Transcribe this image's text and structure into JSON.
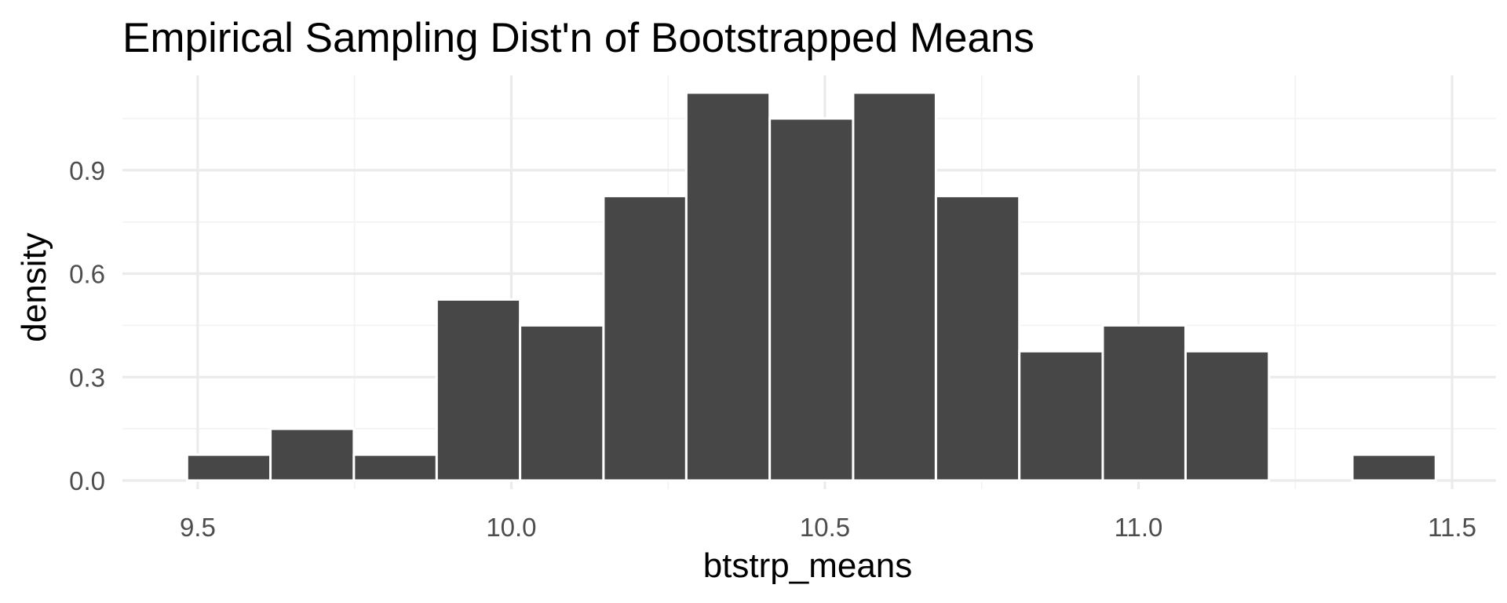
{
  "chart_data": {
    "type": "bar",
    "title": "Empirical Sampling Dist'n of Bootstrapped Means",
    "xlabel": "btstrp_means",
    "ylabel": "density",
    "xlim": [
      9.38,
      11.57
    ],
    "ylim": [
      -0.025,
      1.175
    ],
    "x_ticks": [
      9.5,
      10.0,
      10.5,
      11.0,
      11.5
    ],
    "x_tick_labels": [
      "9.5",
      "10.0",
      "10.5",
      "11.0",
      "11.5"
    ],
    "y_ticks": [
      0.0,
      0.3,
      0.6,
      0.9
    ],
    "y_tick_labels": [
      "0.0",
      "0.3",
      "0.6",
      "0.9"
    ],
    "bin_width": 0.1327,
    "bins": [
      {
        "start": 9.483,
        "end": 9.616,
        "density": 0.075
      },
      {
        "start": 9.616,
        "end": 9.749,
        "density": 0.15
      },
      {
        "start": 9.749,
        "end": 9.881,
        "density": 0.075
      },
      {
        "start": 9.881,
        "end": 10.014,
        "density": 0.525
      },
      {
        "start": 10.014,
        "end": 10.147,
        "density": 0.45
      },
      {
        "start": 10.147,
        "end": 10.279,
        "density": 0.825
      },
      {
        "start": 10.279,
        "end": 10.412,
        "density": 1.125
      },
      {
        "start": 10.412,
        "end": 10.545,
        "density": 1.05
      },
      {
        "start": 10.545,
        "end": 10.677,
        "density": 1.125
      },
      {
        "start": 10.677,
        "end": 10.81,
        "density": 0.825
      },
      {
        "start": 10.81,
        "end": 10.943,
        "density": 0.375
      },
      {
        "start": 10.943,
        "end": 11.075,
        "density": 0.45
      },
      {
        "start": 11.075,
        "end": 11.208,
        "density": 0.375
      },
      {
        "start": 11.208,
        "end": 11.341,
        "density": 0.0
      },
      {
        "start": 11.341,
        "end": 11.474,
        "density": 0.075
      }
    ],
    "grid": true,
    "colors": {
      "bar_fill": "#474747",
      "bar_outline": "#ffffff",
      "grid_major": "#ebebeb",
      "grid_minor": "#f2f2f2",
      "tick_text": "#4d4d4d",
      "text": "#000000"
    }
  }
}
